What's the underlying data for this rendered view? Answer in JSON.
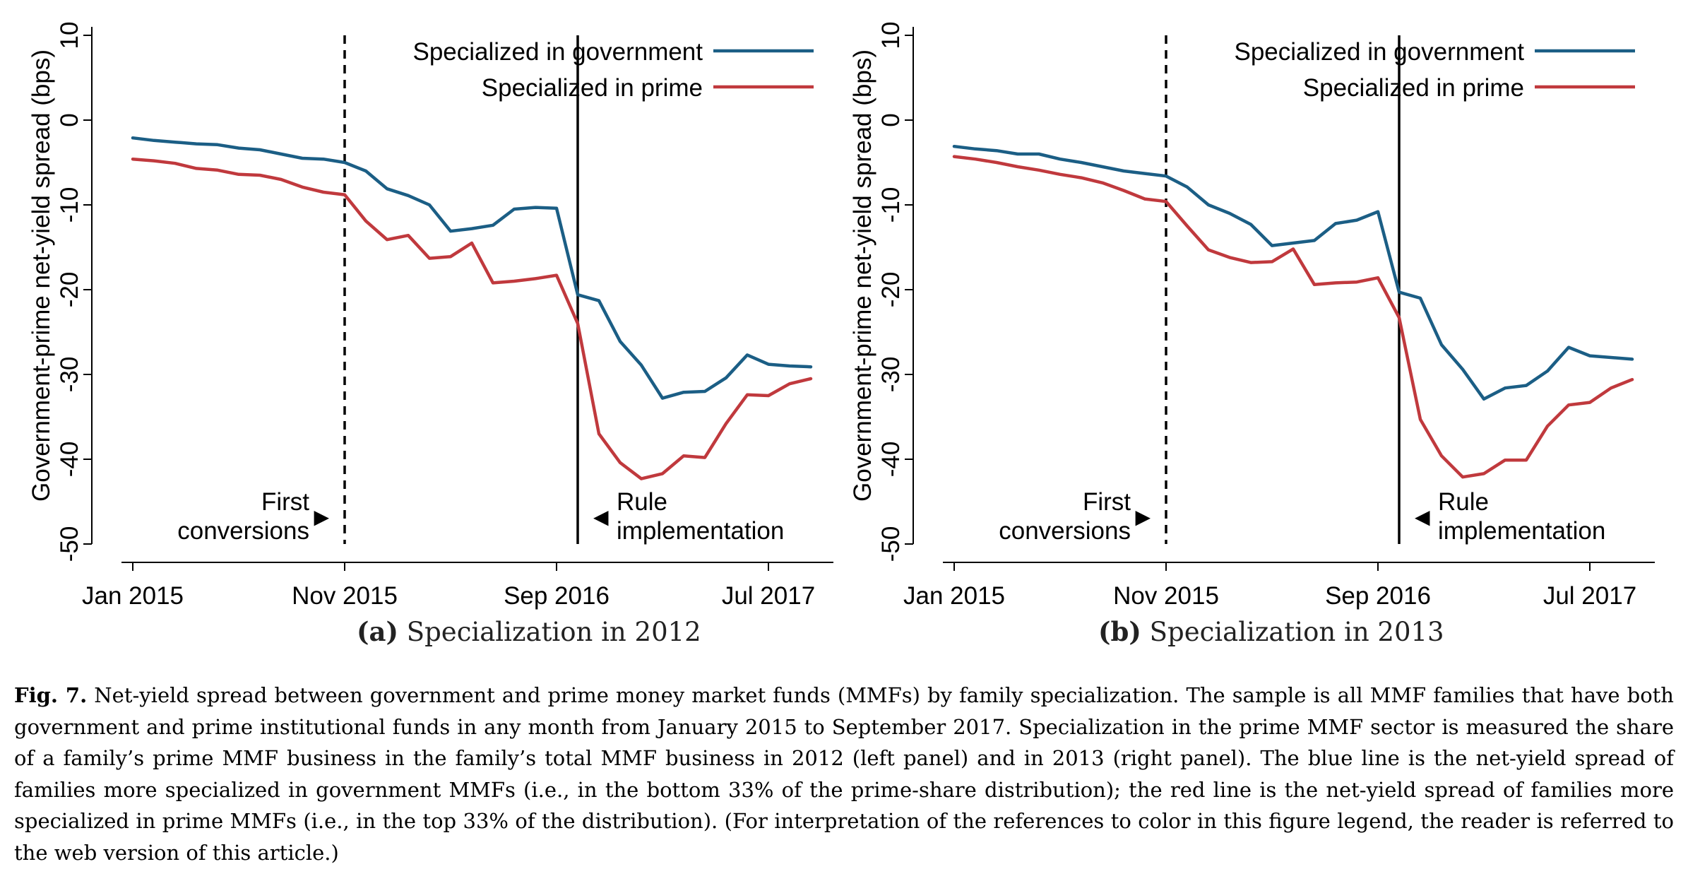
{
  "colors": {
    "government": "#1b5e85",
    "prime": "#c0393d"
  },
  "chart_data": [
    {
      "type": "line",
      "panel_label": "(a)",
      "panel_title": "Specialization in 2012",
      "ylabel": "Government-prime net-yield spread (bps)",
      "ylim": [
        -50,
        10
      ],
      "yticks": [
        "10",
        "0",
        "-10",
        "-20",
        "-30",
        "-40",
        "-50"
      ],
      "x_start": "Jan 2015",
      "x_end": "Sep 2017",
      "xticks": [
        "Jan 2015",
        "Nov 2015",
        "Sep 2016",
        "Jul 2017"
      ],
      "legend_position": "top-right",
      "annotations": [
        {
          "type": "vline",
          "style": "dashed",
          "at": "Nov 2015",
          "text": [
            "First",
            "conversions"
          ],
          "side": "left",
          "arrow": "▶"
        },
        {
          "type": "vline",
          "style": "solid",
          "at": "Oct 2016",
          "text": [
            "Rule",
            "implementation"
          ],
          "side": "right",
          "arrow": "◀"
        }
      ],
      "series": [
        {
          "name": "Specialized in government",
          "color_key": "government",
          "values": [
            -2.1,
            -2.4,
            -2.6,
            -2.8,
            -2.9,
            -3.3,
            -3.5,
            -4.0,
            -4.5,
            -4.6,
            -5.0,
            -6.0,
            -8.1,
            -8.9,
            -10.0,
            -13.1,
            -12.8,
            -12.4,
            -10.5,
            -10.3,
            -10.4,
            -20.6,
            -21.3,
            -26.1,
            -28.9,
            -32.8,
            -32.1,
            -32.0,
            -30.4,
            -27.7,
            -28.8,
            -29.0,
            -29.1
          ]
        },
        {
          "name": "Specialized in prime",
          "color_key": "prime",
          "values": [
            -4.6,
            -4.8,
            -5.1,
            -5.7,
            -5.9,
            -6.4,
            -6.5,
            -7.0,
            -7.9,
            -8.5,
            -8.8,
            -11.9,
            -14.1,
            -13.6,
            -16.3,
            -16.1,
            -14.5,
            -19.2,
            -19.0,
            -18.7,
            -18.3,
            -24.0,
            -37.0,
            -40.4,
            -42.3,
            -41.7,
            -39.6,
            -39.8,
            -35.8,
            -32.4,
            -32.5,
            -31.1,
            -30.5
          ]
        }
      ]
    },
    {
      "type": "line",
      "panel_label": "(b)",
      "panel_title": "Specialization in 2013",
      "ylabel": "Government-prime net-yield spread (bps)",
      "ylim": [
        -50,
        10
      ],
      "yticks": [
        "10",
        "0",
        "-10",
        "-20",
        "-30",
        "-40",
        "-50"
      ],
      "x_start": "Jan 2015",
      "x_end": "Sep 2017",
      "xticks": [
        "Jan 2015",
        "Nov 2015",
        "Sep 2016",
        "Jul 2017"
      ],
      "legend_position": "top-right",
      "annotations": [
        {
          "type": "vline",
          "style": "dashed",
          "at": "Nov 2015",
          "text": [
            "First",
            "conversions"
          ],
          "side": "left",
          "arrow": "▶"
        },
        {
          "type": "vline",
          "style": "solid",
          "at": "Oct 2016",
          "text": [
            "Rule",
            "implementation"
          ],
          "side": "right",
          "arrow": "◀"
        }
      ],
      "series": [
        {
          "name": "Specialized in government",
          "color_key": "government",
          "values": [
            -3.1,
            -3.4,
            -3.6,
            -4.0,
            -4.0,
            -4.6,
            -5.0,
            -5.5,
            -6.0,
            -6.3,
            -6.6,
            -7.9,
            -10.0,
            -11.0,
            -12.3,
            -14.8,
            -14.5,
            -14.2,
            -12.2,
            -11.8,
            -10.8,
            -20.3,
            -21.0,
            -26.5,
            -29.4,
            -32.9,
            -31.6,
            -31.3,
            -29.6,
            -26.8,
            -27.8,
            -28.0,
            -28.2
          ]
        },
        {
          "name": "Specialized in prime",
          "color_key": "prime",
          "values": [
            -4.3,
            -4.6,
            -5.0,
            -5.5,
            -5.9,
            -6.4,
            -6.8,
            -7.4,
            -8.3,
            -9.3,
            -9.6,
            -12.5,
            -15.3,
            -16.2,
            -16.8,
            -16.7,
            -15.2,
            -19.4,
            -19.2,
            -19.1,
            -18.6,
            -23.3,
            -35.3,
            -39.6,
            -42.1,
            -41.7,
            -40.1,
            -40.1,
            -36.1,
            -33.6,
            -33.3,
            -31.6,
            -30.6
          ]
        }
      ]
    }
  ],
  "caption": {
    "label": "Fig. 7.",
    "text": "Net-yield spread between government and prime money market funds (MMFs) by family specialization. The sample is all MMF families that have both government and prime institutional funds in any month from January 2015 to September 2017. Specialization in the prime MMF sector is measured the share of a family’s prime MMF business in the family’s total MMF business in 2012 (left panel) and in 2013 (right panel). The blue line is the net-yield spread of families more specialized in government MMFs (i.e., in the bottom 33% of the prime-share distribution); the red line is the net-yield spread of families more specialized in prime MMFs (i.e., in the top 33% of the distribution). (For interpretation of the references to color in this figure legend, the reader is referred to the web version of this article.)"
  }
}
